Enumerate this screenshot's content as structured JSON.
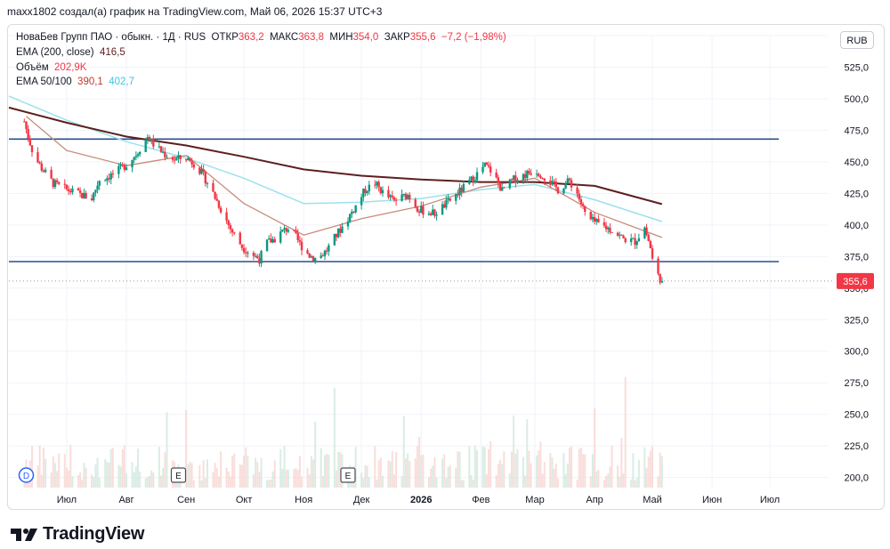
{
  "header": {
    "caption": "maxx1802 создал(а) график на TradingView.com, Май 06, 2026 15:37 UTC+3"
  },
  "legend": {
    "symbol": "НоваБев Групп ПАО · обыкн. · 1Д · RUS",
    "open_label": "ОТКР",
    "open": "363,2",
    "high_label": "МАКС",
    "high": "363,8",
    "low_label": "МИН",
    "low": "354,0",
    "close_label": "ЗАКР",
    "close": "355,6",
    "change": "−7,2 (−1,98%)",
    "ema200_label": "EMA (200, close)",
    "ema200_value": "416,5",
    "volume_label": "Объём",
    "volume_value": "202,9K",
    "ema50_100_label": "EMA 50/100",
    "ema50_value": "390,1",
    "ema100_value": "402,7"
  },
  "currency_label": "RUB",
  "brand": {
    "name": "TradingView"
  },
  "colors": {
    "up": "#089981",
    "down": "#f23645",
    "ema200": "#5d1f1f",
    "ema50": "#c98b7a",
    "ema100": "#9be1ee",
    "hline": "#2a4f8f",
    "price_tag": "#f23645"
  },
  "event_markers": [
    {
      "label": "D",
      "x": "2025-06-10"
    },
    {
      "label": "E",
      "x": "2025-08-28"
    },
    {
      "label": "E",
      "x": "2025-11-24"
    }
  ],
  "chart_data": {
    "type": "candlestick",
    "x_axis": {
      "ticks": [
        {
          "label": "Июл",
          "date": "2025-07-01"
        },
        {
          "label": "Авг",
          "date": "2025-08-01"
        },
        {
          "label": "Сен",
          "date": "2025-09-01"
        },
        {
          "label": "Окт",
          "date": "2025-10-01"
        },
        {
          "label": "Ноя",
          "date": "2025-11-01"
        },
        {
          "label": "Дек",
          "date": "2025-12-01"
        },
        {
          "label": "2026",
          "date": "2026-01-01"
        },
        {
          "label": "Фев",
          "date": "2026-02-01"
        },
        {
          "label": "Мар",
          "date": "2026-03-01"
        },
        {
          "label": "Апр",
          "date": "2026-04-01"
        },
        {
          "label": "Май",
          "date": "2026-05-01"
        },
        {
          "label": "Июн",
          "date": "2026-06-01"
        },
        {
          "label": "Июл",
          "date": "2026-07-01"
        }
      ],
      "range": [
        "2025-06-01",
        "2026-07-31"
      ]
    },
    "y_axis": {
      "ticks": [
        "200,0",
        "225,0",
        "250,0",
        "275,0",
        "300,0",
        "325,0",
        "350,0",
        "375,0",
        "400,0",
        "425,0",
        "450,0",
        "475,0",
        "500,0",
        "525,0",
        "550,0"
      ],
      "range": [
        192,
        550
      ]
    },
    "last_price_label": "355,6",
    "last_price": 355.6,
    "horizontal_levels": [
      468,
      371
    ],
    "price_path": [
      [
        "2025-06-09",
        482
      ],
      [
        "2025-06-11",
        470
      ],
      [
        "2025-06-14",
        455
      ],
      [
        "2025-06-18",
        445
      ],
      [
        "2025-06-24",
        433
      ],
      [
        "2025-07-01",
        428
      ],
      [
        "2025-07-08",
        424
      ],
      [
        "2025-07-14",
        421
      ],
      [
        "2025-07-18",
        436
      ],
      [
        "2025-07-22",
        438
      ],
      [
        "2025-07-27",
        442
      ],
      [
        "2025-08-01",
        448
      ],
      [
        "2025-08-06",
        456
      ],
      [
        "2025-08-09",
        463
      ],
      [
        "2025-08-12",
        470
      ],
      [
        "2025-08-16",
        462
      ],
      [
        "2025-08-21",
        456
      ],
      [
        "2025-08-26",
        452
      ],
      [
        "2025-09-01",
        453
      ],
      [
        "2025-09-06",
        448
      ],
      [
        "2025-09-12",
        434
      ],
      [
        "2025-09-18",
        416
      ],
      [
        "2025-09-24",
        397
      ],
      [
        "2025-09-30",
        383
      ],
      [
        "2025-10-05",
        377
      ],
      [
        "2025-10-09",
        373
      ],
      [
        "2025-10-13",
        386
      ],
      [
        "2025-10-17",
        389
      ],
      [
        "2025-10-21",
        395
      ],
      [
        "2025-10-25",
        398
      ],
      [
        "2025-10-30",
        385
      ],
      [
        "2025-11-04",
        376
      ],
      [
        "2025-11-08",
        373
      ],
      [
        "2025-11-13",
        380
      ],
      [
        "2025-11-18",
        392
      ],
      [
        "2025-11-23",
        403
      ],
      [
        "2025-11-28",
        415
      ],
      [
        "2025-12-03",
        428
      ],
      [
        "2025-12-08",
        433
      ],
      [
        "2025-12-13",
        424
      ],
      [
        "2025-12-18",
        419
      ],
      [
        "2025-12-25",
        424
      ],
      [
        "2025-12-31",
        412
      ],
      [
        "2026-01-08",
        409
      ],
      [
        "2026-01-15",
        418
      ],
      [
        "2026-01-22",
        428
      ],
      [
        "2026-01-28",
        437
      ],
      [
        "2026-02-03",
        447
      ],
      [
        "2026-02-07",
        442
      ],
      [
        "2026-02-12",
        427
      ],
      [
        "2026-02-18",
        436
      ],
      [
        "2026-02-24",
        440
      ],
      [
        "2026-03-01",
        444
      ],
      [
        "2026-03-07",
        437
      ],
      [
        "2026-03-13",
        428
      ],
      [
        "2026-03-19",
        435
      ],
      [
        "2026-03-23",
        425
      ],
      [
        "2026-03-28",
        405
      ],
      [
        "2026-04-04",
        400
      ],
      [
        "2026-04-10",
        396
      ],
      [
        "2026-04-16",
        389
      ],
      [
        "2026-04-22",
        387
      ],
      [
        "2026-04-27",
        398
      ],
      [
        "2026-04-30",
        382
      ],
      [
        "2026-05-02",
        363
      ],
      [
        "2026-05-04",
        360
      ],
      [
        "2026-05-06",
        355.6
      ]
    ],
    "ema200_path": [
      [
        "2025-06-01",
        493
      ],
      [
        "2025-07-01",
        481
      ],
      [
        "2025-08-01",
        470
      ],
      [
        "2025-09-01",
        463
      ],
      [
        "2025-10-01",
        454
      ],
      [
        "2025-11-01",
        444
      ],
      [
        "2025-12-01",
        439
      ],
      [
        "2026-01-01",
        436
      ],
      [
        "2026-02-01",
        434
      ],
      [
        "2026-03-01",
        434
      ],
      [
        "2026-04-01",
        431
      ],
      [
        "2026-05-06",
        416.5
      ]
    ],
    "ema100_path": [
      [
        "2025-06-01",
        502
      ],
      [
        "2025-07-01",
        483
      ],
      [
        "2025-08-01",
        466
      ],
      [
        "2025-09-01",
        453
      ],
      [
        "2025-10-01",
        437
      ],
      [
        "2025-11-01",
        417
      ],
      [
        "2025-12-01",
        418
      ],
      [
        "2026-01-01",
        421
      ],
      [
        "2026-02-01",
        428
      ],
      [
        "2026-03-01",
        432
      ],
      [
        "2026-04-01",
        420
      ],
      [
        "2026-05-06",
        402.7
      ]
    ],
    "ema50_path": [
      [
        "2025-06-10",
        486
      ],
      [
        "2025-07-01",
        459
      ],
      [
        "2025-08-01",
        447
      ],
      [
        "2025-09-01",
        455
      ],
      [
        "2025-10-01",
        417
      ],
      [
        "2025-11-01",
        392
      ],
      [
        "2025-12-01",
        405
      ],
      [
        "2026-01-01",
        415
      ],
      [
        "2026-02-01",
        430
      ],
      [
        "2026-03-01",
        437
      ],
      [
        "2026-04-01",
        410
      ],
      [
        "2026-05-06",
        390.1
      ]
    ]
  }
}
